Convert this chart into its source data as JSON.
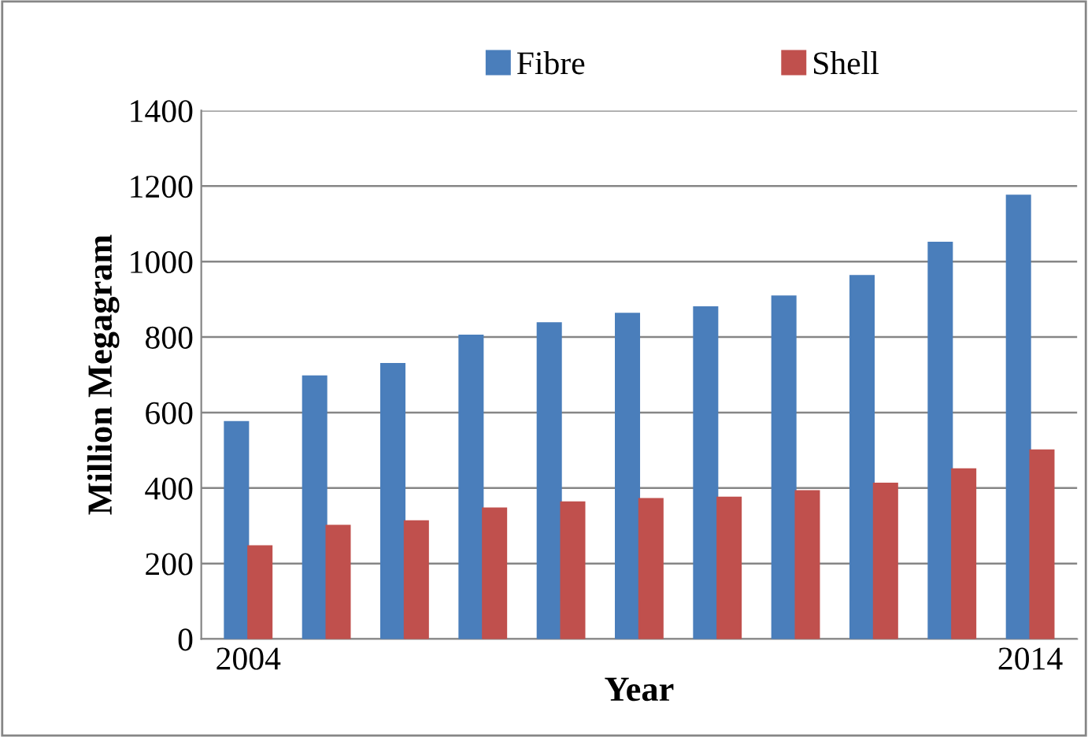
{
  "chart_data": {
    "type": "bar",
    "xlabel": "Year",
    "ylabel": "Million Megagram",
    "categories": [
      "2004",
      null,
      null,
      null,
      null,
      null,
      null,
      null,
      null,
      null,
      "2014"
    ],
    "series": [
      {
        "name": "Fibre",
        "color": "#4a7ebb",
        "values": [
          575,
          696,
          729,
          804,
          837,
          862,
          879,
          908,
          962,
          1050,
          1175
        ]
      },
      {
        "name": "Shell",
        "color": "#c0504d",
        "values": [
          246,
          300,
          312,
          346,
          362,
          371,
          375,
          392,
          412,
          450,
          500
        ]
      }
    ],
    "ylim": [
      0,
      1400
    ],
    "yticks": [
      0,
      200,
      400,
      600,
      800,
      1000,
      1200,
      1400
    ],
    "grid": "y",
    "legend": "top"
  }
}
